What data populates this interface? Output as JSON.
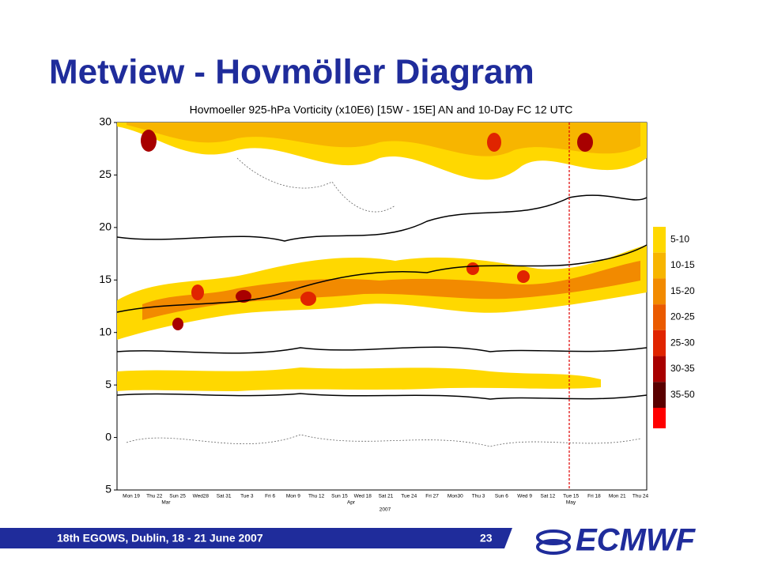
{
  "slide": {
    "title": "Metview - Hovmöller Diagram",
    "figure": {
      "title": "Hovmoeller 925-hPa Vorticity (x10E6)  [15W - 15E]   AN and 10-Day FC  12 UTC",
      "y_labels": [
        "30",
        "25",
        "20",
        "15",
        "10",
        "5",
        "0",
        "5"
      ],
      "x_labels": [
        {
          "text": "Mon 19",
          "sunday": false
        },
        {
          "text": "Thu 22",
          "sunday": false
        },
        {
          "text": "Sun 25",
          "sunday": true
        },
        {
          "text": "Wed28",
          "sunday": false
        },
        {
          "text": "Sat 31",
          "sunday": false
        },
        {
          "text": "Tue 3",
          "sunday": false
        },
        {
          "text": "Fri 6",
          "sunday": false
        },
        {
          "text": "Mon 9",
          "sunday": false
        },
        {
          "text": "Thu 12",
          "sunday": false
        },
        {
          "text": "Sun 15",
          "sunday": true
        },
        {
          "text": "Wed 18",
          "sunday": false
        },
        {
          "text": "Sat 21",
          "sunday": false
        },
        {
          "text": "Tue 24",
          "sunday": false
        },
        {
          "text": "Fri 27",
          "sunday": false
        },
        {
          "text": "Mon30",
          "sunday": false
        },
        {
          "text": "Thu 3",
          "sunday": false
        },
        {
          "text": "Sun 6",
          "sunday": true
        },
        {
          "text": "Wed 9",
          "sunday": false
        },
        {
          "text": "Sat 12",
          "sunday": false
        },
        {
          "text": "Tue 15",
          "sunday": false
        },
        {
          "text": "Fri 18",
          "sunday": false
        },
        {
          "text": "Mon 21",
          "sunday": false
        },
        {
          "text": "Thu 24",
          "sunday": false
        }
      ],
      "months": [
        "Mar",
        "Apr",
        "May"
      ],
      "year": "2007",
      "legend": [
        {
          "label": "5-10",
          "color": "#ffd800"
        },
        {
          "label": "10-15",
          "color": "#f7b500"
        },
        {
          "label": "15-20",
          "color": "#f28a00"
        },
        {
          "label": "20-25",
          "color": "#ea5a00"
        },
        {
          "label": "25-30",
          "color": "#e02400"
        },
        {
          "label": "30-35",
          "color": "#a80000"
        },
        {
          "label": "35-50",
          "color": "#5a0000"
        }
      ]
    },
    "footer": {
      "text": "18th EGOWS, Dublin, 18 - 21 June 2007",
      "page": "23"
    },
    "logo": {
      "text": "ECMWF"
    }
  }
}
